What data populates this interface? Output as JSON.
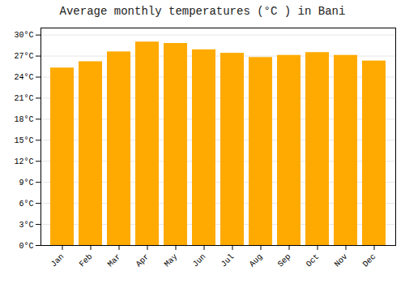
{
  "chart_data": {
    "type": "bar",
    "title": "Average monthly temperatures (°C ) in Bani",
    "categories": [
      "Jan",
      "Feb",
      "Mar",
      "Apr",
      "May",
      "Jun",
      "Jul",
      "Aug",
      "Sep",
      "Oct",
      "Nov",
      "Dec"
    ],
    "values": [
      25.3,
      26.2,
      27.6,
      29.0,
      28.8,
      27.9,
      27.4,
      26.8,
      27.1,
      27.5,
      27.1,
      26.3
    ],
    "color": "#FFAA00",
    "ylim": [
      0,
      31
    ],
    "yticks": [
      {
        "value": 0,
        "label": "0°C"
      },
      {
        "value": 3,
        "label": "3°C"
      },
      {
        "value": 6,
        "label": "6°C"
      },
      {
        "value": 9,
        "label": "9°C"
      },
      {
        "value": 12,
        "label": "12°C"
      },
      {
        "value": 15,
        "label": "15°C"
      },
      {
        "value": 18,
        "label": "18°C"
      },
      {
        "value": 21,
        "label": "21°C"
      },
      {
        "value": 24,
        "label": "24°C"
      },
      {
        "value": 27,
        "label": "27°C"
      },
      {
        "value": 30,
        "label": "30°C"
      }
    ],
    "grid": true
  }
}
